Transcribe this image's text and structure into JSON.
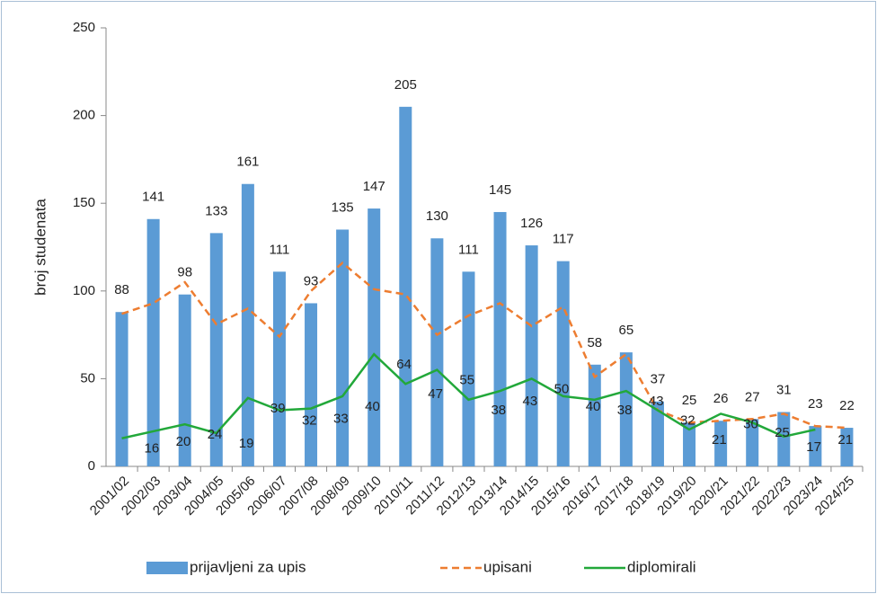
{
  "chart_data": {
    "type": "bar_line",
    "ylabel": "broj studenata",
    "categories": [
      "2001/02",
      "2002/03",
      "2003/04",
      "2004/05",
      "2005/06",
      "2006/07",
      "2007/08",
      "2008/09",
      "2009/10",
      "2010/11",
      "2011/12",
      "2012/13",
      "2013/14",
      "2014/15",
      "2015/16",
      "2016/17",
      "2017/18",
      "2018/19",
      "2019/20",
      "2020/21",
      "2021/22",
      "2022/23",
      "2023/24",
      "2024/25"
    ],
    "series": [
      {
        "name": "prijavljeni za upis",
        "type": "bar",
        "color": "#5b9bd5",
        "values": [
          88,
          141,
          98,
          133,
          161,
          111,
          93,
          135,
          147,
          205,
          130,
          111,
          145,
          126,
          117,
          58,
          65,
          37,
          25,
          26,
          27,
          31,
          23,
          22
        ],
        "show_labels": true
      },
      {
        "name": "upisani",
        "type": "line",
        "dashed": true,
        "color": "#ed7d31",
        "values": [
          87,
          93,
          105,
          81,
          90,
          74,
          100,
          116,
          101,
          98,
          75,
          86,
          93,
          80,
          91,
          51,
          64,
          32,
          25,
          26,
          27,
          30,
          23,
          22
        ],
        "show_labels": false
      },
      {
        "name": "diplomirali",
        "type": "line",
        "dashed": false,
        "color": "#22a83a",
        "values": [
          16,
          20,
          24,
          19,
          39,
          32,
          33,
          40,
          64,
          47,
          55,
          38,
          43,
          50,
          40,
          38,
          43,
          32,
          21,
          30,
          25,
          17,
          21,
          null
        ],
        "show_labels": true
      }
    ],
    "ylim": [
      0,
      250
    ],
    "yticks": [
      0,
      50,
      100,
      150,
      200,
      250
    ],
    "grid": false,
    "legend": "bottom"
  }
}
